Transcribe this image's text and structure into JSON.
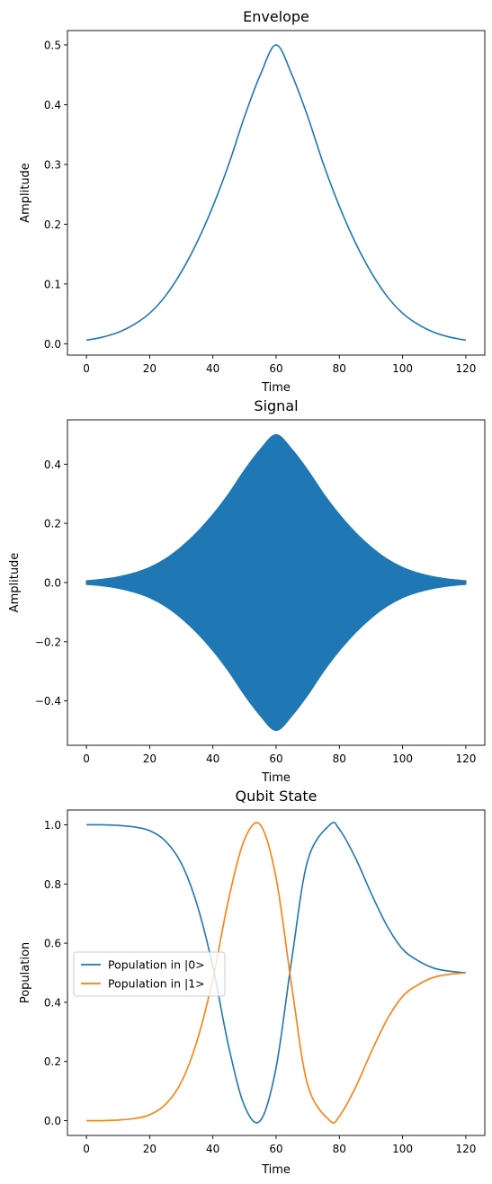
{
  "chart_data": [
    {
      "type": "line",
      "title": "Envelope",
      "xlabel": "Time",
      "ylabel": "Amplitude",
      "xlim": [
        -6,
        126
      ],
      "ylim": [
        -0.019,
        0.524
      ],
      "xticks": [
        0,
        20,
        40,
        60,
        80,
        100,
        120
      ],
      "xtick_labels": [
        "0",
        "20",
        "40",
        "60",
        "80",
        "100",
        "120"
      ],
      "yticks": [
        0.0,
        0.1,
        0.2,
        0.3,
        0.4,
        0.5
      ],
      "ytick_labels": [
        "0.0",
        "0.1",
        "0.2",
        "0.3",
        "0.4",
        "0.5"
      ],
      "grid": false,
      "series": [
        {
          "color": "#1f77b4",
          "x": [
            0,
            5,
            10,
            15,
            20,
            25,
            30,
            35,
            40,
            45,
            50,
            55,
            60,
            65,
            70,
            75,
            80,
            85,
            90,
            95,
            100,
            105,
            110,
            115,
            120
          ],
          "y": [
            0.006,
            0.011,
            0.019,
            0.032,
            0.051,
            0.08,
            0.12,
            0.17,
            0.23,
            0.3,
            0.38,
            0.45,
            0.5,
            0.45,
            0.38,
            0.3,
            0.23,
            0.17,
            0.12,
            0.08,
            0.051,
            0.032,
            0.019,
            0.011,
            0.006
          ]
        }
      ]
    },
    {
      "type": "area",
      "title": "Signal",
      "xlabel": "Time",
      "ylabel": "Amplitude",
      "xlim": [
        -6,
        126
      ],
      "ylim": [
        -0.55,
        0.55
      ],
      "xticks": [
        0,
        20,
        40,
        60,
        80,
        100,
        120
      ],
      "xtick_labels": [
        "0",
        "20",
        "40",
        "60",
        "80",
        "100",
        "120"
      ],
      "yticks": [
        -0.4,
        -0.2,
        0.0,
        0.2,
        0.4
      ],
      "ytick_labels": [
        "−0.4",
        "−0.2",
        "0.0",
        "0.2",
        "0.4"
      ],
      "grid": false,
      "series": [
        {
          "color": "#1f77b4",
          "x": [
            0,
            5,
            10,
            15,
            20,
            25,
            30,
            35,
            40,
            45,
            50,
            55,
            60,
            65,
            70,
            75,
            80,
            85,
            90,
            95,
            100,
            105,
            110,
            115,
            120
          ],
          "y_upper": [
            0.006,
            0.011,
            0.019,
            0.032,
            0.051,
            0.08,
            0.12,
            0.17,
            0.23,
            0.3,
            0.38,
            0.45,
            0.5,
            0.45,
            0.38,
            0.3,
            0.23,
            0.17,
            0.12,
            0.08,
            0.051,
            0.032,
            0.019,
            0.011,
            0.006
          ],
          "y_lower": [
            -0.006,
            -0.011,
            -0.019,
            -0.032,
            -0.051,
            -0.08,
            -0.12,
            -0.17,
            -0.23,
            -0.3,
            -0.38,
            -0.45,
            -0.5,
            -0.45,
            -0.38,
            -0.3,
            -0.23,
            -0.17,
            -0.12,
            -0.08,
            -0.051,
            -0.032,
            -0.019,
            -0.011,
            -0.006
          ]
        }
      ]
    },
    {
      "type": "line",
      "title": "Qubit State",
      "xlabel": "Time",
      "ylabel": "Population",
      "xlim": [
        -6,
        126
      ],
      "ylim": [
        -0.05,
        1.05
      ],
      "xticks": [
        0,
        20,
        40,
        60,
        80,
        100,
        120
      ],
      "xtick_labels": [
        "0",
        "20",
        "40",
        "60",
        "80",
        "100",
        "120"
      ],
      "yticks": [
        0.0,
        0.2,
        0.4,
        0.6,
        0.8,
        1.0
      ],
      "ytick_labels": [
        "0.0",
        "0.2",
        "0.4",
        "0.6",
        "0.8",
        "1.0"
      ],
      "grid": false,
      "legend": "center-left",
      "series": [
        {
          "name": "Population in |0>",
          "color": "#1f77b4",
          "x": [
            0,
            5,
            10,
            15,
            20,
            25,
            30,
            35,
            40,
            45,
            50,
            55,
            60,
            65,
            70,
            77,
            80,
            85,
            90,
            95,
            100,
            105,
            110,
            115,
            120
          ],
          "y": [
            1.0,
            1.0,
            0.998,
            0.993,
            0.98,
            0.945,
            0.87,
            0.73,
            0.52,
            0.25,
            0.05,
            0.0,
            0.18,
            0.55,
            0.88,
            1.0,
            0.985,
            0.89,
            0.77,
            0.66,
            0.58,
            0.54,
            0.515,
            0.505,
            0.5
          ]
        },
        {
          "name": "Population in |1>",
          "color": "#ff7f0e",
          "x": [
            0,
            5,
            10,
            15,
            20,
            25,
            30,
            35,
            40,
            45,
            50,
            55,
            60,
            65,
            70,
            77,
            80,
            85,
            90,
            95,
            100,
            105,
            110,
            115,
            120
          ],
          "y": [
            0.0,
            0.0,
            0.002,
            0.007,
            0.02,
            0.055,
            0.13,
            0.27,
            0.48,
            0.75,
            0.95,
            1.0,
            0.82,
            0.45,
            0.12,
            0.0,
            0.015,
            0.11,
            0.23,
            0.34,
            0.42,
            0.46,
            0.485,
            0.495,
            0.5
          ]
        }
      ]
    }
  ]
}
